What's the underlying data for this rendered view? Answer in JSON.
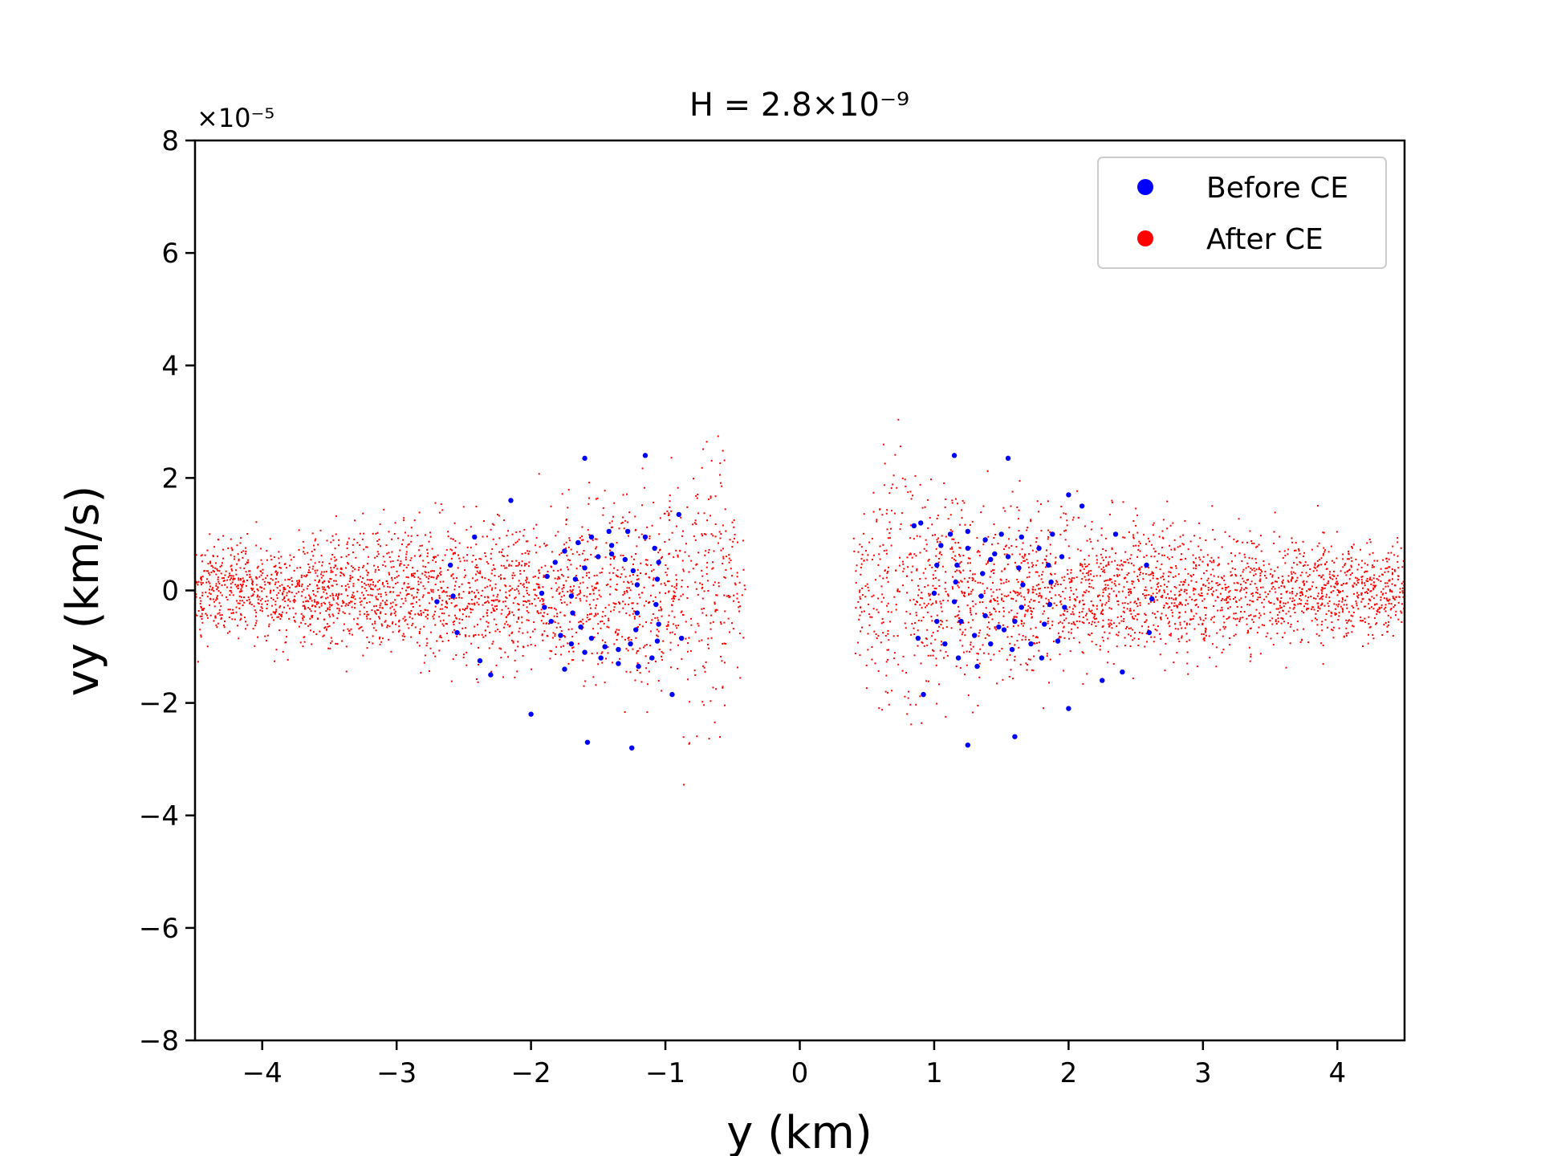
{
  "chart_data": {
    "type": "scatter",
    "title": "H = 2.8×10⁻⁹",
    "xlabel": "y (km)",
    "ylabel": "vy (km/s)",
    "y_offset_label": "×10⁻⁵",
    "xlim": [
      -4.5,
      4.5
    ],
    "ylim": [
      -8,
      8
    ],
    "x_ticks": [
      -4,
      -3,
      -2,
      -1,
      0,
      1,
      2,
      3,
      4
    ],
    "x_tick_labels": [
      "−4",
      "−3",
      "−2",
      "−1",
      "0",
      "1",
      "2",
      "3",
      "4"
    ],
    "y_ticks": [
      -8,
      -6,
      -4,
      -2,
      0,
      2,
      4,
      6,
      8
    ],
    "y_tick_labels": [
      "−8",
      "−6",
      "−4",
      "−2",
      "0",
      "2",
      "4",
      "6",
      "8"
    ],
    "grid": false,
    "legend_position": "top-right",
    "series": [
      {
        "name": "Before CE",
        "color": "#0000ff",
        "marker_size": "large",
        "points": [
          [
            -1.92,
            -0.05
          ],
          [
            -1.9,
            -0.3
          ],
          [
            -1.88,
            0.25
          ],
          [
            -1.85,
            -0.55
          ],
          [
            -1.82,
            0.5
          ],
          [
            -1.78,
            -0.8
          ],
          [
            -1.75,
            0.7
          ],
          [
            -1.7,
            -0.95
          ],
          [
            -1.65,
            0.85
          ],
          [
            -1.6,
            -1.1
          ],
          [
            -1.55,
            0.95
          ],
          [
            -1.48,
            -1.2
          ],
          [
            -1.42,
            1.05
          ],
          [
            -1.35,
            -1.3
          ],
          [
            -1.28,
            1.05
          ],
          [
            -1.2,
            -1.35
          ],
          [
            -1.15,
            0.95
          ],
          [
            -1.1,
            -1.2
          ],
          [
            -1.08,
            0.75
          ],
          [
            -1.06,
            -0.9
          ],
          [
            -1.05,
            0.5
          ],
          [
            -1.05,
            -0.6
          ],
          [
            -1.06,
            0.2
          ],
          [
            -1.07,
            -0.25
          ],
          [
            -1.7,
            -0.1
          ],
          [
            -1.69,
            -0.4
          ],
          [
            -1.67,
            0.2
          ],
          [
            -1.63,
            -0.65
          ],
          [
            -1.6,
            0.4
          ],
          [
            -1.55,
            -0.85
          ],
          [
            -1.5,
            0.6
          ],
          [
            -1.45,
            -1.0
          ],
          [
            -1.4,
            0.65
          ],
          [
            -1.35,
            -1.05
          ],
          [
            -1.3,
            0.55
          ],
          [
            -1.26,
            -0.95
          ],
          [
            -1.24,
            0.35
          ],
          [
            -1.22,
            -0.7
          ],
          [
            -1.21,
            0.1
          ],
          [
            -1.21,
            -0.4
          ],
          [
            -2.6,
            0.45
          ],
          [
            -2.58,
            -0.1
          ],
          [
            -2.55,
            -0.75
          ],
          [
            -2.42,
            0.95
          ],
          [
            -2.38,
            -1.25
          ],
          [
            -2.15,
            1.6
          ],
          [
            -2.0,
            -2.2
          ],
          [
            -1.6,
            2.35
          ],
          [
            -1.58,
            -2.7
          ],
          [
            -1.15,
            2.4
          ],
          [
            -1.25,
            -2.8
          ],
          [
            -0.9,
            1.35
          ],
          [
            -0.88,
            -0.85
          ],
          [
            -0.95,
            -1.85
          ],
          [
            -2.7,
            -0.2
          ],
          [
            -2.3,
            -1.5
          ],
          [
            -1.75,
            -1.4
          ],
          [
            -1.4,
            0.8
          ],
          [
            1.42,
            -0.95
          ],
          [
            1.38,
            0.9
          ],
          [
            1.3,
            -0.8
          ],
          [
            1.25,
            0.75
          ],
          [
            1.2,
            -0.55
          ],
          [
            1.17,
            0.45
          ],
          [
            1.15,
            -0.2
          ],
          [
            1.16,
            0.15
          ],
          [
            1.5,
            1.0
          ],
          [
            1.58,
            -1.05
          ],
          [
            1.65,
            0.95
          ],
          [
            1.72,
            -0.95
          ],
          [
            1.78,
            0.75
          ],
          [
            1.82,
            -0.6
          ],
          [
            1.85,
            0.45
          ],
          [
            1.86,
            -0.25
          ],
          [
            1.87,
            0.15
          ],
          [
            1.35,
            -0.1
          ],
          [
            1.36,
            0.3
          ],
          [
            1.38,
            -0.45
          ],
          [
            1.42,
            0.55
          ],
          [
            1.48,
            -0.65
          ],
          [
            1.55,
            0.6
          ],
          [
            1.6,
            -0.55
          ],
          [
            1.63,
            0.4
          ],
          [
            1.65,
            -0.3
          ],
          [
            1.66,
            0.1
          ],
          [
            1.45,
            0.65
          ],
          [
            1.52,
            -0.7
          ],
          [
            1.0,
            -0.05
          ],
          [
            1.02,
            0.45
          ],
          [
            1.02,
            -0.55
          ],
          [
            1.05,
            0.8
          ],
          [
            1.08,
            -0.95
          ],
          [
            1.12,
            1.0
          ],
          [
            1.18,
            -1.2
          ],
          [
            1.25,
            1.05
          ],
          [
            1.32,
            -1.35
          ],
          [
            1.95,
            0.6
          ],
          [
            1.97,
            -0.3
          ],
          [
            1.92,
            -0.9
          ],
          [
            1.88,
            1.0
          ],
          [
            1.8,
            -1.2
          ],
          [
            0.85,
            1.15
          ],
          [
            0.88,
            -0.85
          ],
          [
            0.92,
            -1.85
          ],
          [
            1.15,
            2.4
          ],
          [
            1.25,
            -2.75
          ],
          [
            1.55,
            2.35
          ],
          [
            1.6,
            -2.6
          ],
          [
            2.0,
            1.7
          ],
          [
            2.0,
            -2.1
          ],
          [
            2.1,
            1.5
          ],
          [
            2.35,
            1.0
          ],
          [
            2.4,
            -1.45
          ],
          [
            2.58,
            0.45
          ],
          [
            2.62,
            -0.15
          ],
          [
            2.6,
            -0.75
          ],
          [
            2.25,
            -1.6
          ],
          [
            0.9,
            1.2
          ]
        ]
      },
      {
        "name": "After CE",
        "color": "#ff0000",
        "marker_size": "small",
        "points": []
      }
    ]
  }
}
